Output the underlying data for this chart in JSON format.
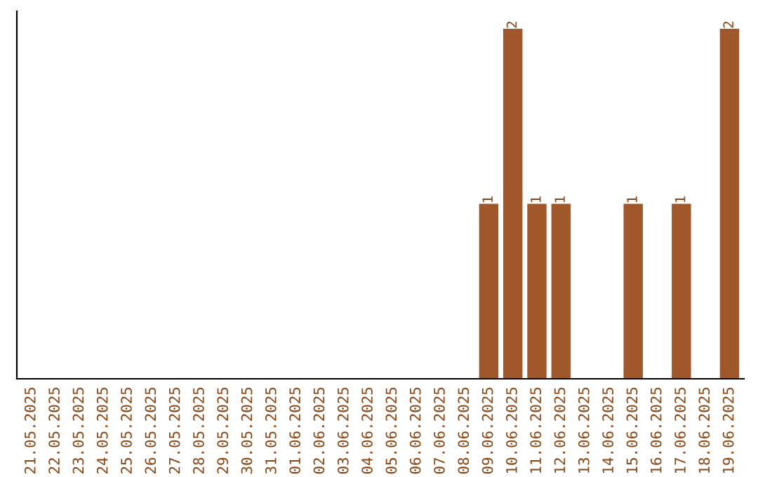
{
  "chart_data": {
    "type": "bar",
    "categories": [
      "21.05.2025",
      "22.05.2025",
      "23.05.2025",
      "24.05.2025",
      "25.05.2025",
      "26.05.2025",
      "27.05.2025",
      "28.05.2025",
      "29.05.2025",
      "30.05.2025",
      "31.05.2025",
      "01.06.2025",
      "02.06.2025",
      "03.06.2025",
      "04.06.2025",
      "05.06.2025",
      "06.06.2025",
      "07.06.2025",
      "08.06.2025",
      "09.06.2025",
      "10.06.2025",
      "11.06.2025",
      "12.06.2025",
      "13.06.2025",
      "14.06.2025",
      "15.06.2025",
      "16.06.2025",
      "17.06.2025",
      "18.06.2025",
      "19.06.2025"
    ],
    "values": [
      null,
      null,
      null,
      null,
      null,
      null,
      null,
      null,
      null,
      null,
      null,
      null,
      null,
      null,
      null,
      null,
      null,
      null,
      null,
      1,
      2,
      1,
      1,
      null,
      null,
      1,
      null,
      1,
      null,
      2
    ],
    "data_labels": true,
    "color": "#a0582a",
    "tick_labels": "x",
    "grid": false,
    "legend": false
  }
}
